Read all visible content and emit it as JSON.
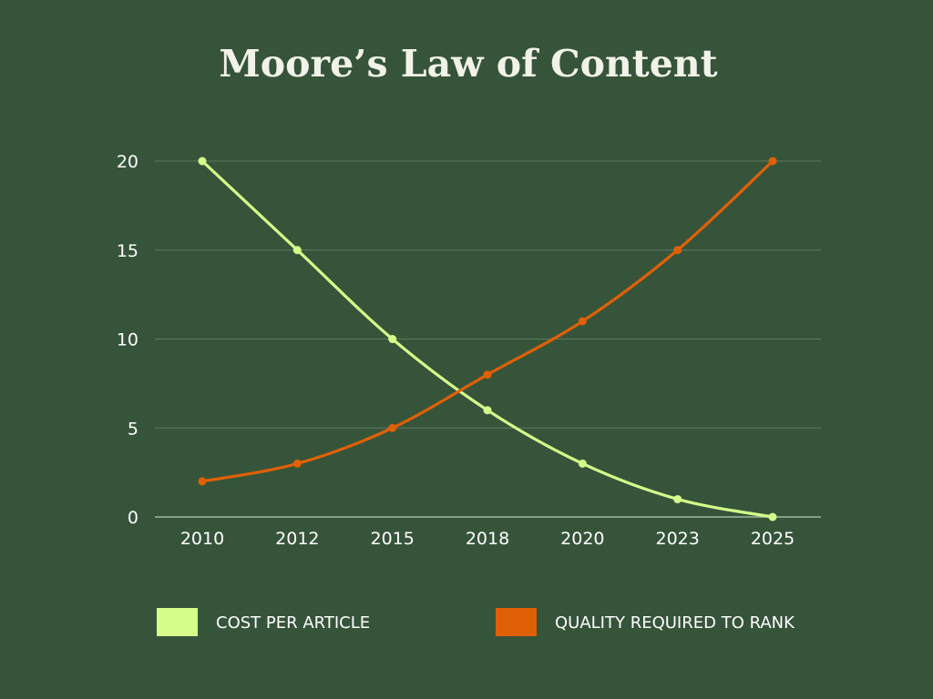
{
  "chart_data": {
    "type": "line",
    "title": "Moore’s Law of Content",
    "xlabel": "",
    "ylabel": "",
    "categories": [
      "2010",
      "2012",
      "2015",
      "2018",
      "2020",
      "2023",
      "2025"
    ],
    "yticks": [
      "0",
      "5",
      "10",
      "15",
      "20"
    ],
    "ylim": [
      0,
      20
    ],
    "grid": true,
    "legend_position": "bottom",
    "background_color": "#36543A",
    "series": [
      {
        "name": "COST PER ARTICLE",
        "color": "#D5FF8A",
        "values": [
          20,
          15,
          10,
          6,
          3,
          1,
          0
        ]
      },
      {
        "name": "QUALITY REQUIRED TO RANK",
        "color": "#E06007",
        "values": [
          2,
          3,
          5,
          8,
          11,
          15,
          20
        ]
      }
    ]
  }
}
